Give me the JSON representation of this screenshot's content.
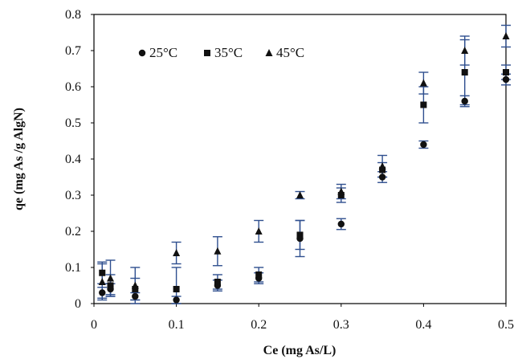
{
  "chart_data": {
    "type": "scatter",
    "xlabel": "Ce (mg As/L)",
    "ylabel": "qe (mg As /g AlgN)",
    "xlim": [
      0,
      0.5
    ],
    "ylim": [
      0,
      0.8
    ],
    "x_ticks": [
      "0",
      "0.1",
      "0.2",
      "0.3",
      "0.4",
      "0.5"
    ],
    "y_ticks": [
      "0",
      "0.1",
      "0.2",
      "0.3",
      "0.4",
      "0.5",
      "0.6",
      "0.7",
      "0.8"
    ],
    "grid": false,
    "legend_position": "top-left",
    "colors": {
      "marker": "#111111",
      "error_bar": "#2f4f8f",
      "frame": "#000000"
    },
    "series": [
      {
        "name": "25°C",
        "marker": "circle",
        "points": [
          {
            "x": 0.01,
            "y": 0.03,
            "err": 0.015
          },
          {
            "x": 0.02,
            "y": 0.04,
            "err": 0.015
          },
          {
            "x": 0.05,
            "y": 0.02,
            "err": 0.01
          },
          {
            "x": 0.1,
            "y": 0.01,
            "err": 0.01
          },
          {
            "x": 0.15,
            "y": 0.05,
            "err": 0.015
          },
          {
            "x": 0.2,
            "y": 0.07,
            "err": 0.015
          },
          {
            "x": 0.25,
            "y": 0.18,
            "err": 0.05
          },
          {
            "x": 0.3,
            "y": 0.22,
            "err": 0.015
          },
          {
            "x": 0.35,
            "y": 0.35,
            "err": 0.015
          },
          {
            "x": 0.4,
            "y": 0.44,
            "err": 0.01
          },
          {
            "x": 0.45,
            "y": 0.56,
            "err": 0.015
          },
          {
            "x": 0.5,
            "y": 0.62,
            "err": 0.015
          }
        ]
      },
      {
        "name": "35°C",
        "marker": "square",
        "points": [
          {
            "x": 0.01,
            "y": 0.085,
            "err": 0.03
          },
          {
            "x": 0.02,
            "y": 0.05,
            "err": 0.03
          },
          {
            "x": 0.05,
            "y": 0.04,
            "err": 0.03
          },
          {
            "x": 0.1,
            "y": 0.04,
            "err": 0.06
          },
          {
            "x": 0.15,
            "y": 0.06,
            "err": 0.02
          },
          {
            "x": 0.2,
            "y": 0.08,
            "err": 0.02
          },
          {
            "x": 0.25,
            "y": 0.19,
            "err": 0.04
          },
          {
            "x": 0.3,
            "y": 0.3,
            "err": 0.02
          },
          {
            "x": 0.35,
            "y": 0.37,
            "err": 0.02
          },
          {
            "x": 0.4,
            "y": 0.55,
            "err": 0.05
          },
          {
            "x": 0.45,
            "y": 0.64,
            "err": 0.09
          },
          {
            "x": 0.5,
            "y": 0.64,
            "err": 0.02
          }
        ]
      },
      {
        "name": "45°C",
        "marker": "triangle",
        "points": [
          {
            "x": 0.01,
            "y": 0.06,
            "err": 0.05
          },
          {
            "x": 0.02,
            "y": 0.07,
            "err": 0.05
          },
          {
            "x": 0.05,
            "y": 0.05,
            "err": 0.05
          },
          {
            "x": 0.1,
            "y": 0.14,
            "err": 0.03
          },
          {
            "x": 0.15,
            "y": 0.145,
            "err": 0.04
          },
          {
            "x": 0.2,
            "y": 0.2,
            "err": 0.03
          },
          {
            "x": 0.25,
            "y": 0.3,
            "err": 0.01
          },
          {
            "x": 0.3,
            "y": 0.31,
            "err": 0.02
          },
          {
            "x": 0.35,
            "y": 0.38,
            "err": 0.03
          },
          {
            "x": 0.4,
            "y": 0.61,
            "err": 0.03
          },
          {
            "x": 0.45,
            "y": 0.7,
            "err": 0.04
          },
          {
            "x": 0.5,
            "y": 0.74,
            "err": 0.03
          }
        ]
      }
    ]
  }
}
